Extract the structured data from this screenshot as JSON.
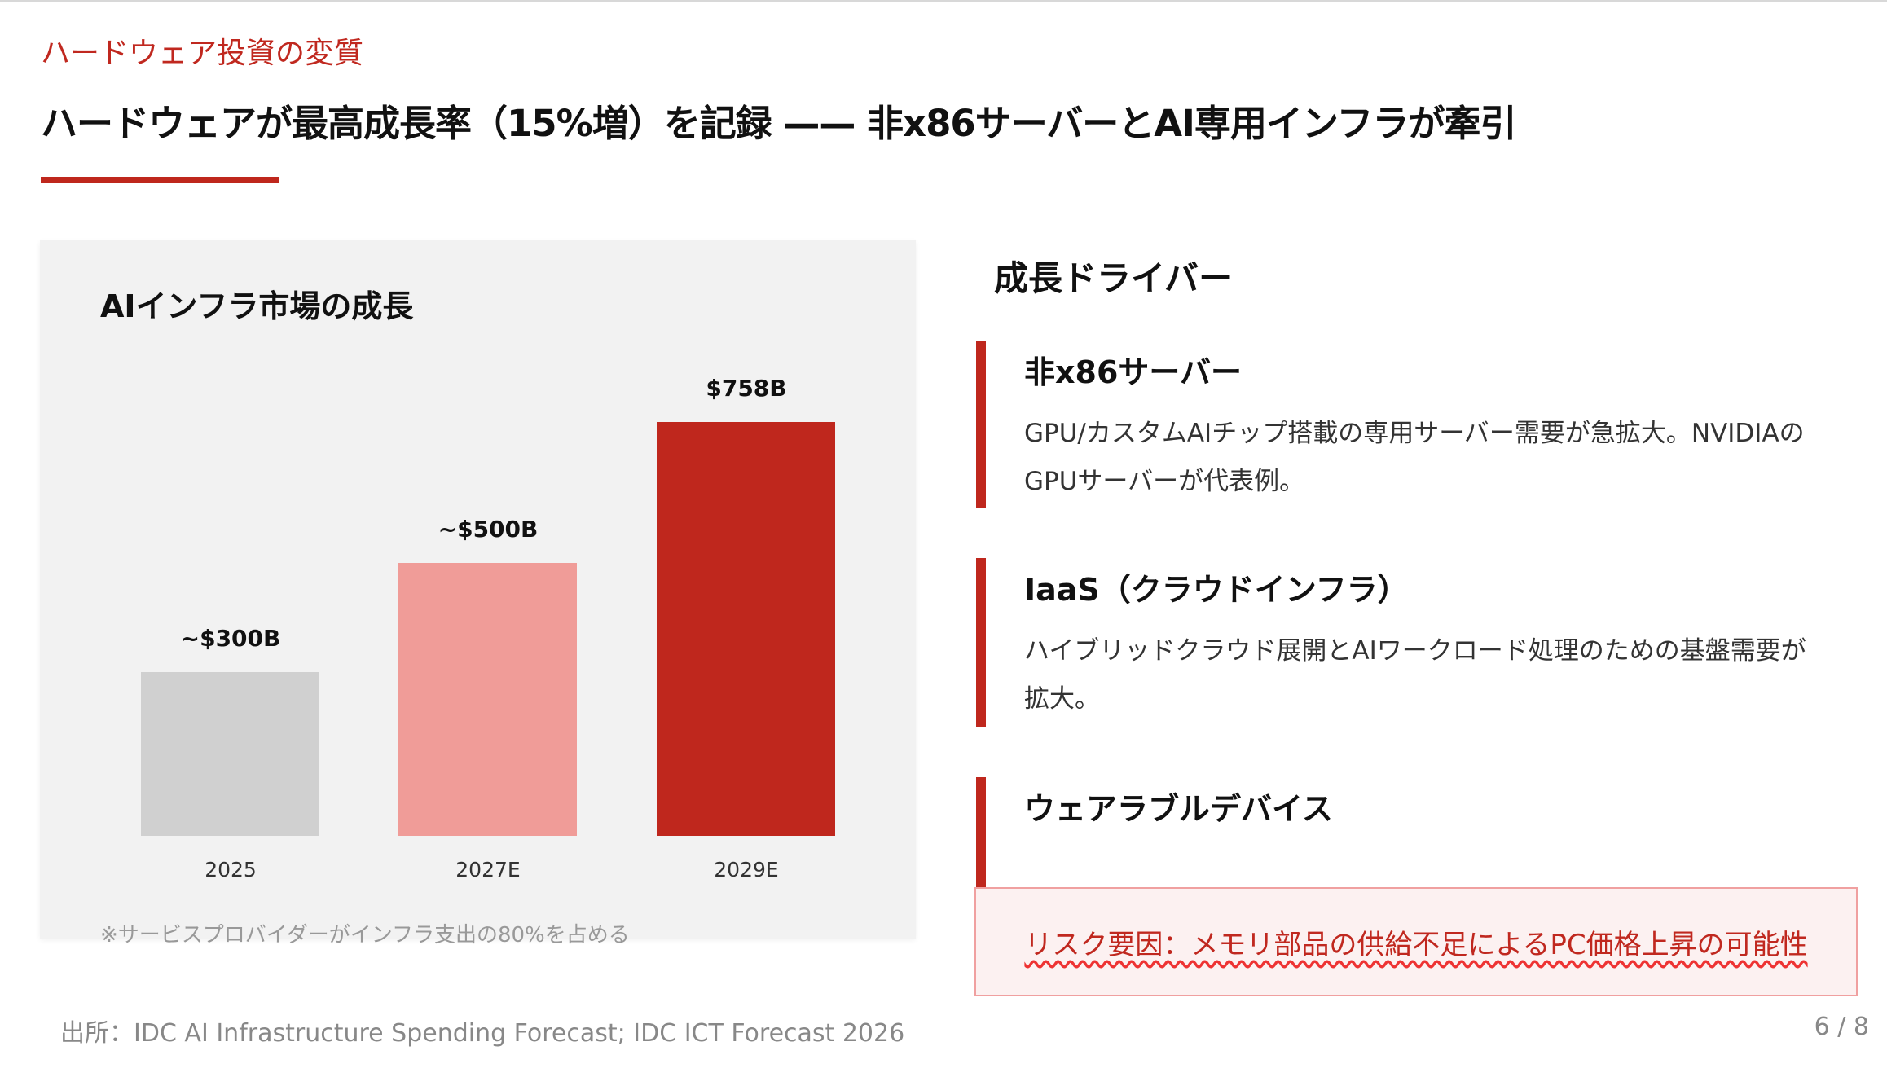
{
  "header": {
    "kicker": "ハードウェア投資の変質",
    "title": "ハードウェアが最高成長率（15%増）を記録 —— 非x86サーバーとAI専用インフラが牽引"
  },
  "chart_data": {
    "type": "bar",
    "title": "AIインフラ市場の成長",
    "categories": [
      "2025",
      "2027E",
      "2029E"
    ],
    "values": [
      300,
      500,
      758
    ],
    "data_labels": [
      "~$300B",
      "~$500B",
      "$758B"
    ],
    "colors": [
      "#d0d0d0",
      "#f09c98",
      "#bf271d"
    ],
    "ylim": [
      0,
      800
    ],
    "grid": false,
    "footnote": "※サービスプロバイダーがインフラ支出の80%を占める"
  },
  "drivers": {
    "title": "成長ドライバー",
    "items": [
      {
        "heading": "非x86サーバー",
        "desc": "GPU/カスタムAIチップ搭載の専用サーバー需要が急拡大。NVIDIAのGPUサーバーが代表例。"
      },
      {
        "heading": "IaaS（クラウドインフラ）",
        "desc": "ハイブリッドクラウド展開とAIワークロード処理のための基盤需要が拡大。"
      },
      {
        "heading": "ウェアラブルデバイス",
        "desc": ""
      }
    ],
    "risk": "リスク要因：メモリ部品の供給不足によるPC価格上昇の可能性"
  },
  "footer": {
    "source": "出所：IDC AI Infrastructure Spending Forecast; IDC ICT Forecast 2026",
    "page": "6 / 8"
  },
  "colors": {
    "accent": "#bf271d",
    "risk_bg": "#fcf1f1",
    "risk_border": "#f0a0a0"
  }
}
